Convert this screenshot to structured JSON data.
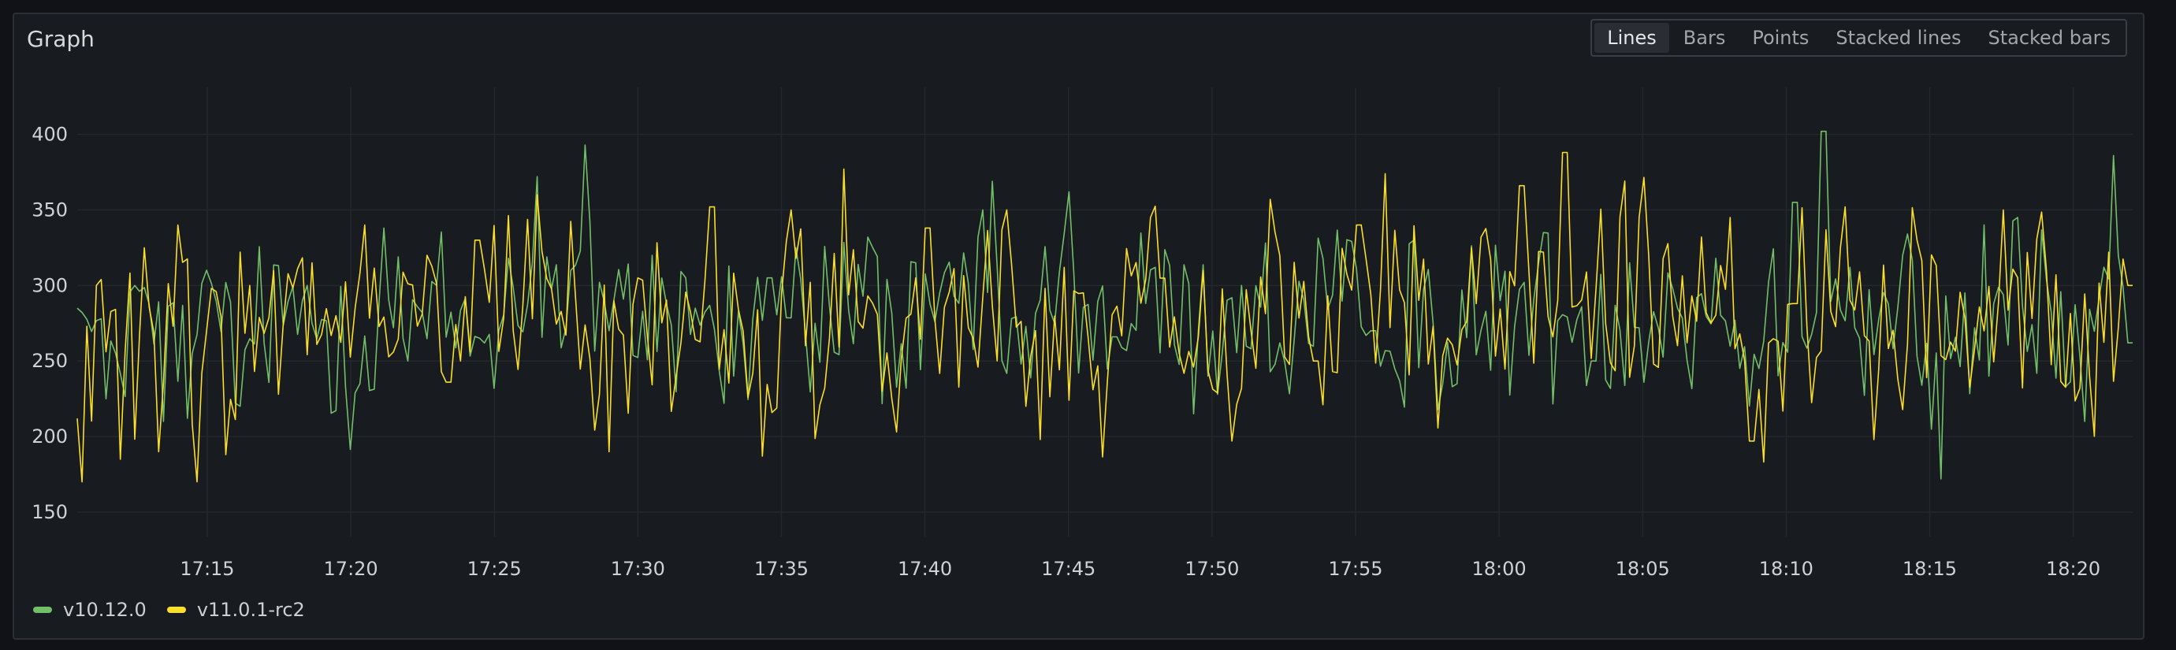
{
  "panel": {
    "title": "Graph"
  },
  "view_modes": [
    {
      "label": "Lines",
      "active": true
    },
    {
      "label": "Bars",
      "active": false
    },
    {
      "label": "Points",
      "active": false
    },
    {
      "label": "Stacked lines",
      "active": false
    },
    {
      "label": "Stacked bars",
      "active": false
    }
  ],
  "colors": {
    "grid": "#24272e",
    "axis_text": "#d0d2d5"
  },
  "chart_data": {
    "type": "line",
    "title": "Graph",
    "xlabel": "",
    "ylabel": "",
    "x_start": "17:10:28",
    "x_end": "18:22:04",
    "x_ticks": [
      "17:15",
      "17:20",
      "17:25",
      "17:30",
      "17:35",
      "17:40",
      "17:45",
      "17:50",
      "17:55",
      "18:00",
      "18:05",
      "18:10",
      "18:15",
      "18:20"
    ],
    "x_tick_minutes": [
      1035,
      1040,
      1045,
      1050,
      1055,
      1060,
      1065,
      1070,
      1075,
      1080,
      1085,
      1090,
      1095,
      1100
    ],
    "x_range_minutes": [
      1030.47,
      1102.07
    ],
    "y_ticks": [
      150,
      200,
      250,
      300,
      350,
      400
    ],
    "ylim": [
      138,
      430
    ],
    "grid": true,
    "legend_position": "bottom-left",
    "series": [
      {
        "name": "v10.12.0",
        "color": "#73bf69",
        "point_count": 430,
        "anchors": [
          [
            1030.5,
            285
          ],
          [
            1031.5,
            225
          ],
          [
            1032.5,
            300
          ],
          [
            1033.5,
            210
          ],
          [
            1034.5,
            255
          ],
          [
            1035.6,
            302
          ],
          [
            1036.2,
            220
          ],
          [
            1037.0,
            262
          ],
          [
            1038.5,
            300
          ],
          [
            1040.3,
            235
          ],
          [
            1041.2,
            338
          ],
          [
            1042.0,
            250
          ],
          [
            1043.0,
            300
          ],
          [
            1044.5,
            265
          ],
          [
            1045.5,
            318
          ],
          [
            1046.5,
            372
          ],
          [
            1047.7,
            310
          ],
          [
            1048.1,
            393
          ],
          [
            1049.0,
            270
          ],
          [
            1050.5,
            320
          ],
          [
            1052.0,
            285
          ],
          [
            1053.4,
            240
          ],
          [
            1054.6,
            305
          ],
          [
            1056.2,
            275
          ],
          [
            1058.0,
            332
          ],
          [
            1059.3,
            232
          ],
          [
            1060.5,
            295
          ],
          [
            1062.0,
            350
          ],
          [
            1063.4,
            248
          ],
          [
            1065.0,
            362
          ],
          [
            1066.6,
            266
          ],
          [
            1068.0,
            312
          ],
          [
            1069.5,
            270
          ],
          [
            1071.0,
            300
          ],
          [
            1072.4,
            262
          ],
          [
            1073.9,
            318
          ],
          [
            1075.6,
            270
          ],
          [
            1077.0,
            330
          ],
          [
            1078.6,
            235
          ],
          [
            1080.0,
            290
          ],
          [
            1081.6,
            335
          ],
          [
            1083.3,
            250
          ],
          [
            1084.6,
            315
          ],
          [
            1086.0,
            298
          ],
          [
            1087.6,
            318
          ],
          [
            1089.0,
            245
          ],
          [
            1090.3,
            355
          ],
          [
            1091.3,
            402
          ],
          [
            1092.5,
            265
          ],
          [
            1094.0,
            320
          ],
          [
            1095.4,
            172
          ],
          [
            1096.6,
            272
          ],
          [
            1098.0,
            345
          ],
          [
            1099.2,
            282
          ],
          [
            1100.4,
            210
          ],
          [
            1101.4,
            386
          ],
          [
            1102.0,
            262
          ]
        ],
        "min_approx": 172,
        "max_approx": 402
      },
      {
        "name": "v11.0.1-rc2",
        "color": "#fade2a",
        "point_count": 430,
        "anchors": [
          [
            1030.5,
            212
          ],
          [
            1030.7,
            170
          ],
          [
            1031.2,
            300
          ],
          [
            1032.0,
            185
          ],
          [
            1032.8,
            325
          ],
          [
            1033.3,
            190
          ],
          [
            1034.0,
            340
          ],
          [
            1034.6,
            170
          ],
          [
            1035.0,
            270
          ],
          [
            1035.6,
            188
          ],
          [
            1036.5,
            300
          ],
          [
            1037.5,
            228
          ],
          [
            1038.7,
            315
          ],
          [
            1039.5,
            280
          ],
          [
            1040.5,
            340
          ],
          [
            1041.5,
            256
          ],
          [
            1042.6,
            320
          ],
          [
            1043.4,
            236
          ],
          [
            1044.4,
            330
          ],
          [
            1045.6,
            270
          ],
          [
            1046.5,
            360
          ],
          [
            1048.7,
            228
          ],
          [
            1049.0,
            190
          ],
          [
            1050.0,
            305
          ],
          [
            1051.5,
            262
          ],
          [
            1052.6,
            352
          ],
          [
            1053.9,
            226
          ],
          [
            1054.3,
            187
          ],
          [
            1055.4,
            350
          ],
          [
            1056.5,
            232
          ],
          [
            1057.2,
            377
          ],
          [
            1058.5,
            230
          ],
          [
            1059.0,
            203
          ],
          [
            1060.1,
            338
          ],
          [
            1061.8,
            246
          ],
          [
            1062.9,
            350
          ],
          [
            1063.5,
            220
          ],
          [
            1064.0,
            198
          ],
          [
            1064.9,
            312
          ],
          [
            1066.4,
            236
          ],
          [
            1067.8,
            345
          ],
          [
            1069.4,
            246
          ],
          [
            1070.7,
            197
          ],
          [
            1072.0,
            357
          ],
          [
            1073.6,
            250
          ],
          [
            1075.1,
            340
          ],
          [
            1076.0,
            374
          ],
          [
            1077.5,
            248
          ],
          [
            1079.0,
            325
          ],
          [
            1080.8,
            366
          ],
          [
            1082.1,
            290
          ],
          [
            1082.3,
            388
          ],
          [
            1083.4,
            298
          ],
          [
            1084.9,
            345
          ],
          [
            1086.6,
            262
          ],
          [
            1088.1,
            345
          ],
          [
            1088.8,
            197
          ],
          [
            1090.3,
            288
          ],
          [
            1092.0,
            352
          ],
          [
            1093.0,
            198
          ],
          [
            1094.6,
            330
          ],
          [
            1096.5,
            258
          ],
          [
            1097.6,
            350
          ],
          [
            1099.0,
            310
          ],
          [
            1100.2,
            232
          ],
          [
            1101.2,
            322
          ],
          [
            1102.0,
            300
          ]
        ],
        "min_approx": 168,
        "max_approx": 389
      }
    ]
  }
}
